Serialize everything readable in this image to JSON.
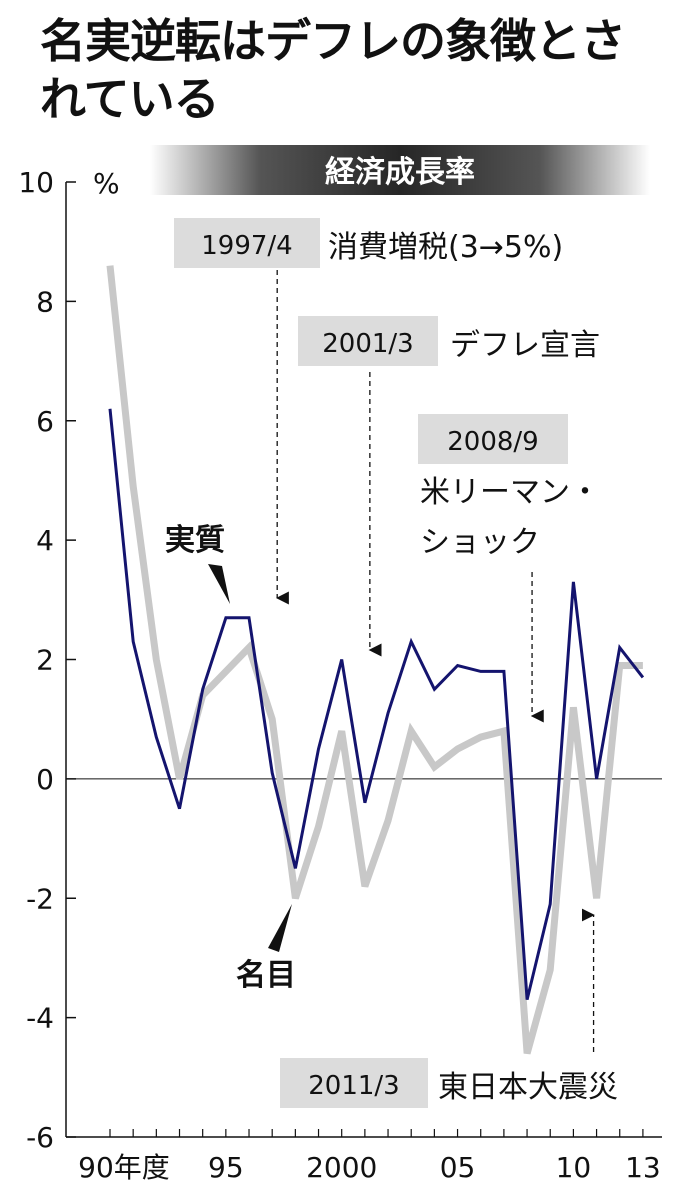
{
  "headline": "名実逆転はデフレの象徴とされている",
  "chart_data": {
    "type": "line",
    "title": "経済成長率",
    "ylabel": "%",
    "ylim": [
      -6,
      10
    ],
    "yticks": [
      "10",
      "8",
      "6",
      "4",
      "2",
      "0",
      "-2",
      "-4",
      "-6"
    ],
    "x": [
      1990,
      1991,
      1992,
      1993,
      1994,
      1995,
      1996,
      1997,
      1998,
      1999,
      2000,
      2001,
      2002,
      2003,
      2004,
      2005,
      2006,
      2007,
      2008,
      2009,
      2010,
      2011,
      2012,
      2013
    ],
    "xticks": [
      {
        "x": 1990,
        "label": "90年度"
      },
      {
        "x": 1995,
        "label": "95"
      },
      {
        "x": 2000,
        "label": "2000"
      },
      {
        "x": 2005,
        "label": "05"
      },
      {
        "x": 2010,
        "label": "10"
      },
      {
        "x": 2013,
        "label": "13"
      }
    ],
    "series": [
      {
        "name": "名目",
        "color": "#c8c8c8",
        "values": [
          8.6,
          4.9,
          2.0,
          0.0,
          1.4,
          1.8,
          2.2,
          1.0,
          -2.0,
          -0.8,
          0.8,
          -1.8,
          -0.7,
          0.8,
          0.2,
          0.5,
          0.7,
          0.8,
          -4.6,
          -3.2,
          1.2,
          -2.0,
          1.9,
          1.9
        ]
      },
      {
        "name": "実質",
        "color": "#14146e",
        "values": [
          6.2,
          2.3,
          0.7,
          -0.5,
          1.5,
          2.7,
          2.7,
          0.1,
          -1.5,
          0.5,
          2.0,
          -0.4,
          1.1,
          2.3,
          1.5,
          1.9,
          1.8,
          1.8,
          -3.7,
          -2.1,
          3.3,
          0.0,
          2.2,
          1.7
        ]
      }
    ],
    "annotations": [
      {
        "date": "1997/4",
        "text": "消費増税(3→5%)",
        "x": 1997
      },
      {
        "date": "2001/3",
        "text": "デフレ宣言",
        "x": 2001
      },
      {
        "date": "2008/9",
        "text": "米リーマン・ショック",
        "x": 2008
      },
      {
        "date": "2011/3",
        "text": "東日本大震災",
        "x": 2011
      }
    ],
    "grid": false
  }
}
